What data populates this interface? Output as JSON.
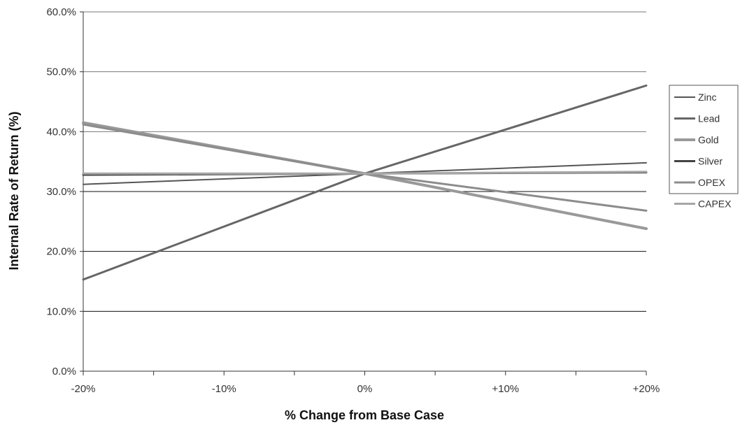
{
  "chart_data": {
    "type": "line",
    "title": "",
    "xlabel": "% Change from Base Case",
    "ylabel": "Internal Rate of Return (%)",
    "x": [
      -20,
      0,
      20
    ],
    "x_tick_values": [
      -20,
      -10,
      0,
      10,
      20
    ],
    "x_tick_labels": [
      "-20%",
      "-10%",
      "0%",
      "+10%",
      "+20%"
    ],
    "xlim": [
      -20,
      20
    ],
    "y_tick_values": [
      0,
      10,
      20,
      30,
      40,
      50,
      60
    ],
    "y_tick_labels": [
      "0.0%",
      "10.0%",
      "20.0%",
      "30.0%",
      "40.0%",
      "50.0%",
      "60.0%"
    ],
    "ylim": [
      0,
      60
    ],
    "grid": true,
    "legend_position": "right",
    "series": [
      {
        "name": "Zinc",
        "values": [
          31.2,
          33.0,
          34.8
        ],
        "color": "#555555",
        "width": 2
      },
      {
        "name": "Lead",
        "values": [
          15.3,
          33.0,
          47.7
        ],
        "color": "#666666",
        "width": 3
      },
      {
        "name": "Gold",
        "values": [
          41.5,
          33.0,
          23.8
        ],
        "color": "#999999",
        "width": 4
      },
      {
        "name": "Silver",
        "values": [
          32.8,
          33.0,
          33.2
        ],
        "color": "#444444",
        "width": 3
      },
      {
        "name": "OPEX",
        "values": [
          41.2,
          33.0,
          26.8
        ],
        "color": "#8c8c8c",
        "width": 3
      },
      {
        "name": "CAPEX",
        "values": [
          33.0,
          33.0,
          33.3
        ],
        "color": "#a6a6a6",
        "width": 3
      }
    ]
  }
}
